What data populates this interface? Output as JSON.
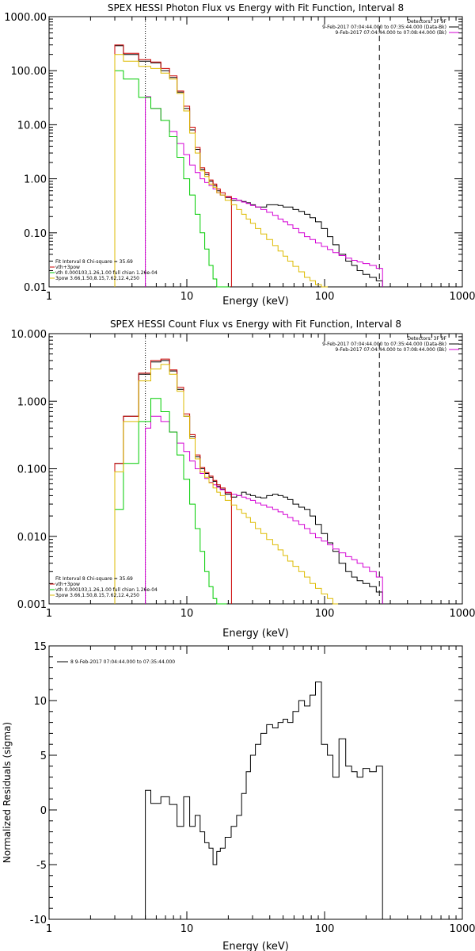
{
  "chart_data": [
    {
      "type": "line",
      "title": "SPEX HESSI Photon Flux vs Energy with Fit Function, Interval 8",
      "xlabel": "Energy (keV)",
      "ylabel": "",
      "xscale": "log",
      "yscale": "log",
      "xlim": [
        1,
        1000
      ],
      "ylim": [
        0.01,
        1000
      ],
      "xticks": [
        "1",
        "10",
        "100",
        "1000"
      ],
      "yticks": [
        "0.01",
        "0.10",
        "1.00",
        "10.00",
        "100.00",
        "1000.00"
      ],
      "vlines": [
        {
          "x": 5.0,
          "style": "dotted"
        },
        {
          "x": 250,
          "style": "dashed"
        }
      ],
      "legend_topright": [
        "Detectors: 3F 9F",
        "9-Feb-2017 07:04:44.000 to 07:35:44.000 (Data-Bk)",
        "9-Feb-2017 07:04:44.000 to 07:08:44.000 (Bk)"
      ],
      "legend_bottomleft": [
        "Fit Interval 8   Chi-square = 35.69",
        "vth+3pow",
        "vth 0.000103,1.26,1.00  full chian 1.26e-04",
        "3pow 3.66,1.50,8.15,7.62,12.4,250"
      ],
      "series": [
        {
          "name": "Data-Bk",
          "color": "#000000",
          "x": [
            3,
            4,
            5,
            6,
            7,
            8,
            9,
            10,
            11,
            12,
            13,
            14,
            15,
            16,
            17,
            18,
            20,
            22,
            24,
            26,
            28,
            30,
            33,
            36,
            40,
            44,
            48,
            52,
            56,
            62,
            68,
            75,
            82,
            90,
            100,
            110,
            120,
            135,
            150,
            165,
            180,
            200,
            225,
            250
          ],
          "y": [
            290,
            200,
            150,
            140,
            100,
            75,
            40,
            20,
            8,
            3.5,
            1.5,
            1.2,
            0.9,
            0.75,
            0.6,
            0.5,
            0.45,
            0.4,
            0.4,
            0.38,
            0.36,
            0.33,
            0.3,
            0.3,
            0.33,
            0.33,
            0.32,
            0.3,
            0.3,
            0.27,
            0.25,
            0.22,
            0.19,
            0.16,
            0.12,
            0.085,
            0.06,
            0.04,
            0.03,
            0.025,
            0.02,
            0.017,
            0.015,
            0.013
          ]
        },
        {
          "name": "Bk",
          "color": "#d400d4",
          "x": [
            5,
            6,
            7,
            8,
            9,
            10,
            11,
            12,
            13,
            14,
            15,
            16,
            17,
            18,
            20,
            22,
            24,
            26,
            28,
            30,
            33,
            36,
            40,
            44,
            48,
            52,
            56,
            62,
            68,
            75,
            82,
            90,
            100,
            110,
            120,
            135,
            150,
            165,
            180,
            200,
            225,
            250
          ],
          "y": [
            33,
            20,
            12,
            7.5,
            4.5,
            2.8,
            1.8,
            1.3,
            1.0,
            0.85,
            0.75,
            0.65,
            0.55,
            0.5,
            0.46,
            0.43,
            0.4,
            0.37,
            0.35,
            0.32,
            0.3,
            0.27,
            0.24,
            0.21,
            0.18,
            0.16,
            0.14,
            0.12,
            0.1,
            0.085,
            0.075,
            0.065,
            0.056,
            0.049,
            0.043,
            0.038,
            0.034,
            0.031,
            0.029,
            0.027,
            0.025,
            0.022
          ]
        },
        {
          "name": "vth+3pow",
          "color": "#cc0000",
          "x": [
            3,
            4,
            5,
            6,
            7,
            8,
            9,
            10,
            11,
            12,
            13,
            14,
            15,
            16,
            17,
            18,
            20
          ],
          "y": [
            300,
            210,
            160,
            145,
            110,
            80,
            42,
            22,
            9,
            3.8,
            1.6,
            1.3,
            0.95,
            0.8,
            0.65,
            0.55,
            0.47
          ]
        },
        {
          "name": "vth",
          "color": "#00cc00",
          "x": [
            3,
            4,
            5,
            6,
            7,
            8,
            9,
            10,
            11,
            12,
            13,
            14,
            15,
            16,
            17,
            18,
            19,
            20
          ],
          "y": [
            100,
            70,
            32,
            20,
            12,
            6,
            2.5,
            1.0,
            0.5,
            0.22,
            0.1,
            0.05,
            0.025,
            0.014,
            0.01,
            0.01,
            0.01,
            0.01
          ]
        },
        {
          "name": "3pow",
          "color": "#ddbb00",
          "x": [
            3,
            4,
            5,
            6,
            7,
            8,
            9,
            10,
            11,
            12,
            13,
            14,
            15,
            16,
            17,
            18,
            20,
            22,
            24,
            26,
            28,
            30,
            33,
            36,
            40,
            44,
            48,
            52,
            56,
            62,
            68,
            75,
            82,
            90,
            100
          ],
          "y": [
            200,
            150,
            120,
            110,
            90,
            70,
            38,
            18,
            7,
            3,
            1.4,
            1.1,
            0.8,
            0.7,
            0.55,
            0.5,
            0.4,
            0.33,
            0.27,
            0.22,
            0.18,
            0.15,
            0.12,
            0.095,
            0.075,
            0.058,
            0.046,
            0.037,
            0.03,
            0.024,
            0.019,
            0.015,
            0.013,
            0.011,
            0.01
          ]
        }
      ]
    },
    {
      "type": "line",
      "title": "SPEX HESSI Count Flux vs Energy with Fit Function, Interval 8",
      "xlabel": "Energy (keV)",
      "ylabel": "",
      "xscale": "log",
      "yscale": "log",
      "xlim": [
        1,
        1000
      ],
      "ylim": [
        0.001,
        10
      ],
      "xticks": [
        "1",
        "10",
        "100",
        "1000"
      ],
      "yticks": [
        "0.001",
        "0.010",
        "0.100",
        "1.000",
        "10.000"
      ],
      "vlines": [
        {
          "x": 5.0,
          "style": "dotted"
        },
        {
          "x": 250,
          "style": "dashed"
        }
      ],
      "legend_topright": [
        "Detectors: 3F 9F",
        "9-Feb-2017 07:04:44.000 to 07:35:44.000 (Data-Bk)",
        "9-Feb-2017 07:04:44.000 to 07:08:44.000 (Bk)"
      ],
      "legend_bottomleft": [
        "Fit Interval 8   Chi-square = 35.69",
        "vth+3pow",
        "vth 0.000103,1.26,1.00  full chian 1.26e-04",
        "3pow 3.66,1.50,8.15,7.62,12.4,250"
      ],
      "series": [
        {
          "name": "Data-Bk",
          "color": "#000000",
          "x": [
            3,
            4,
            5,
            6,
            7,
            8,
            9,
            10,
            11,
            12,
            13,
            14,
            15,
            16,
            17,
            18,
            20,
            22,
            24,
            26,
            28,
            30,
            33,
            36,
            40,
            44,
            48,
            52,
            56,
            62,
            68,
            75,
            82,
            90,
            100,
            110,
            120,
            135,
            150,
            165,
            180,
            200,
            225,
            250
          ],
          "y": [
            0.12,
            0.6,
            2.5,
            3.8,
            4.0,
            2.8,
            1.5,
            0.6,
            0.3,
            0.15,
            0.1,
            0.085,
            0.075,
            0.065,
            0.055,
            0.05,
            0.042,
            0.038,
            0.04,
            0.045,
            0.042,
            0.04,
            0.038,
            0.037,
            0.04,
            0.042,
            0.04,
            0.038,
            0.035,
            0.03,
            0.027,
            0.025,
            0.02,
            0.015,
            0.011,
            0.008,
            0.006,
            0.004,
            0.003,
            0.0025,
            0.0022,
            0.002,
            0.0018,
            0.0015
          ]
        },
        {
          "name": "Bk",
          "color": "#d400d4",
          "x": [
            5,
            6,
            7,
            8,
            9,
            10,
            11,
            12,
            13,
            14,
            15,
            16,
            17,
            18,
            20,
            22,
            24,
            26,
            28,
            30,
            33,
            36,
            40,
            44,
            48,
            52,
            56,
            62,
            68,
            75,
            82,
            90,
            100,
            110,
            120,
            135,
            150,
            165,
            180,
            200,
            225,
            250
          ],
          "y": [
            0.4,
            0.6,
            0.5,
            0.35,
            0.24,
            0.18,
            0.13,
            0.1,
            0.085,
            0.072,
            0.063,
            0.058,
            0.053,
            0.049,
            0.045,
            0.042,
            0.04,
            0.038,
            0.036,
            0.034,
            0.031,
            0.029,
            0.027,
            0.025,
            0.023,
            0.021,
            0.019,
            0.017,
            0.015,
            0.013,
            0.011,
            0.0095,
            0.0085,
            0.0075,
            0.0065,
            0.0057,
            0.005,
            0.0045,
            0.004,
            0.0035,
            0.003,
            0.0025
          ]
        },
        {
          "name": "vth+3pow",
          "color": "#cc0000",
          "x": [
            3,
            4,
            5,
            6,
            7,
            8,
            9,
            10,
            11,
            12,
            13,
            14,
            15,
            16,
            17,
            18,
            20
          ],
          "y": [
            0.12,
            0.6,
            2.6,
            4.0,
            4.2,
            2.9,
            1.6,
            0.65,
            0.32,
            0.16,
            0.105,
            0.088,
            0.078,
            0.067,
            0.058,
            0.052,
            0.044
          ]
        },
        {
          "name": "vth",
          "color": "#00cc00",
          "x": [
            3,
            4,
            5,
            6,
            7,
            8,
            9,
            10,
            11,
            12,
            13,
            14,
            15,
            16,
            17,
            18,
            19
          ],
          "y": [
            0.025,
            0.12,
            0.5,
            1.1,
            0.7,
            0.35,
            0.16,
            0.07,
            0.03,
            0.013,
            0.006,
            0.003,
            0.0018,
            0.0012,
            0.001,
            0.001,
            0.001
          ]
        },
        {
          "name": "3pow",
          "color": "#ddbb00",
          "x": [
            3,
            4,
            5,
            6,
            7,
            8,
            9,
            10,
            11,
            12,
            13,
            14,
            15,
            16,
            17,
            18,
            20,
            22,
            24,
            26,
            28,
            30,
            33,
            36,
            40,
            44,
            48,
            52,
            56,
            62,
            68,
            75,
            82,
            90,
            100,
            110,
            120
          ],
          "y": [
            0.09,
            0.5,
            2.0,
            3.0,
            3.5,
            2.5,
            1.4,
            0.6,
            0.28,
            0.14,
            0.09,
            0.075,
            0.062,
            0.052,
            0.045,
            0.04,
            0.034,
            0.029,
            0.025,
            0.022,
            0.019,
            0.016,
            0.013,
            0.011,
            0.009,
            0.0075,
            0.0063,
            0.0052,
            0.0043,
            0.0036,
            0.003,
            0.0025,
            0.002,
            0.0017,
            0.0014,
            0.0012,
            0.001
          ]
        }
      ]
    },
    {
      "type": "line",
      "title": "",
      "xlabel": "Energy (keV)",
      "ylabel": "Normalized Residuals (sigma)",
      "xscale": "log",
      "yscale": "linear",
      "xlim": [
        1,
        1000
      ],
      "ylim": [
        -10,
        15
      ],
      "xticks": [
        "1",
        "10",
        "100",
        "1000"
      ],
      "yticks": [
        "-10",
        "-5",
        "0",
        "5",
        "10",
        "15"
      ],
      "legend": [
        "8  9-Feb-2017 07:04:44.000 to 07:35:44.000"
      ],
      "series": [
        {
          "name": "8  9-Feb-2017 07:04:44.000 to 07:35:44.000",
          "color": "#000000",
          "x": [
            5,
            6,
            7,
            8,
            9,
            10,
            11,
            12,
            13,
            14,
            15,
            16,
            17,
            18,
            20,
            22,
            24,
            26,
            28,
            30,
            33,
            36,
            40,
            44,
            48,
            52,
            56,
            62,
            68,
            75,
            82,
            90,
            100,
            110,
            120,
            135,
            150,
            165,
            180,
            200,
            225,
            250
          ],
          "y": [
            1.8,
            0.6,
            1.2,
            0.5,
            -1.5,
            1.2,
            -1.5,
            -0.5,
            -2,
            -3,
            -3.5,
            -5,
            -3.8,
            -3.5,
            -2.5,
            -1.5,
            -0.5,
            1.5,
            3.5,
            5,
            6,
            7,
            7.8,
            7.5,
            8,
            8.3,
            8,
            9,
            10,
            9.5,
            10.5,
            11.7,
            6,
            5,
            3,
            6.5,
            4,
            3.5,
            3,
            3.8,
            3.5,
            4
          ]
        }
      ]
    }
  ]
}
